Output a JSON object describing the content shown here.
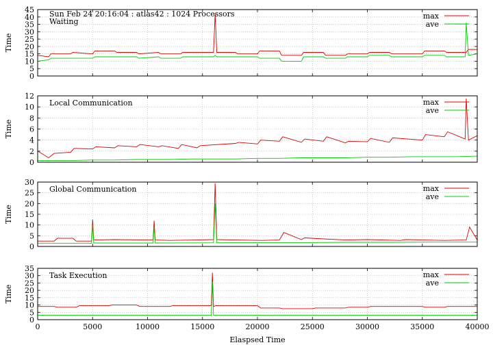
{
  "header": {
    "title": "Sun Feb 24 20:16:04 : atlas42 : 1024 Processors"
  },
  "chart_data": [
    {
      "type": "line",
      "annotation": "Waiting",
      "ylabel": "Time",
      "xlabel": "",
      "xlim": [
        0,
        40000
      ],
      "ylim": [
        0,
        45
      ],
      "yticks": [
        0,
        5,
        10,
        15,
        20,
        25,
        30,
        35,
        40,
        45
      ],
      "grid": true,
      "legend": "top-right",
      "series": [
        {
          "name": "max",
          "color": "#dd0000",
          "x": [
            0,
            1000,
            1200,
            3000,
            3200,
            5000,
            5200,
            7000,
            7200,
            9000,
            9200,
            11000,
            11200,
            13000,
            13200,
            16000,
            16150,
            16300,
            18000,
            18200,
            20000,
            20200,
            22000,
            22200,
            24000,
            24200,
            26000,
            26200,
            28000,
            28200,
            30000,
            30200,
            32000,
            32200,
            35000,
            35200,
            37000,
            37200,
            39000,
            39200,
            40000
          ],
          "y": [
            14,
            13,
            15,
            15,
            16,
            15,
            17,
            17,
            16,
            16,
            15,
            16,
            15,
            15,
            16,
            16,
            42,
            16,
            16,
            15,
            15,
            17,
            17,
            14,
            14,
            16,
            16,
            14,
            14,
            15,
            15,
            16,
            16,
            15,
            15,
            17,
            17,
            16,
            16,
            18,
            18
          ]
        },
        {
          "name": "ave",
          "color": "#00cc00",
          "x": [
            0,
            1000,
            1200,
            3000,
            3200,
            5000,
            5200,
            7000,
            7200,
            9000,
            9200,
            11000,
            11200,
            13000,
            13200,
            16000,
            16150,
            16300,
            18000,
            18200,
            20000,
            20200,
            22000,
            22200,
            24000,
            24200,
            26000,
            26200,
            28000,
            28200,
            30000,
            30200,
            32000,
            32200,
            35000,
            35200,
            37000,
            37200,
            38900,
            39000,
            39200,
            40000
          ],
          "y": [
            10,
            11,
            12,
            12,
            12,
            12,
            13,
            13,
            13,
            13,
            12,
            13,
            12,
            12,
            13,
            13,
            14,
            13,
            13,
            13,
            13,
            12,
            12,
            10,
            10,
            13,
            13,
            12,
            12,
            13,
            13,
            14,
            14,
            13,
            13,
            14,
            14,
            13,
            13,
            36,
            14,
            15
          ]
        }
      ]
    },
    {
      "type": "line",
      "annotation": "Local Communication",
      "ylabel": "Time",
      "xlabel": "",
      "xlim": [
        0,
        40000
      ],
      "ylim": [
        0,
        12
      ],
      "yticks": [
        0,
        2,
        4,
        6,
        8,
        10,
        12
      ],
      "grid": true,
      "legend": "top-right",
      "series": [
        {
          "name": "max",
          "color": "#dd0000",
          "x": [
            0,
            1000,
            1500,
            3000,
            3300,
            5000,
            5300,
            7000,
            7300,
            9000,
            9300,
            11000,
            11300,
            12800,
            13100,
            14500,
            14800,
            18000,
            18300,
            20000,
            20300,
            22000,
            22300,
            24000,
            24300,
            26000,
            26300,
            28000,
            28300,
            30000,
            30300,
            32000,
            32300,
            35000,
            35300,
            37000,
            37300,
            38900,
            39000,
            39200,
            40000
          ],
          "y": [
            2.0,
            0.8,
            1.6,
            1.8,
            2.5,
            2.4,
            2.8,
            2.6,
            3.0,
            2.8,
            3.2,
            2.8,
            3.0,
            2.5,
            3.2,
            2.6,
            3.0,
            3.4,
            3.6,
            3.3,
            4.0,
            3.8,
            4.6,
            3.6,
            4.2,
            3.8,
            4.6,
            3.5,
            3.8,
            3.7,
            4.3,
            3.6,
            4.4,
            4.0,
            5.0,
            4.6,
            5.5,
            4.2,
            11.5,
            4.0,
            4.8
          ]
        },
        {
          "name": "ave",
          "color": "#00cc00",
          "x": [
            0,
            3000,
            5000,
            7000,
            9000,
            12000,
            14000,
            16000,
            18000,
            20000,
            22000,
            24000,
            26000,
            28000,
            30000,
            32000,
            34000,
            36000,
            38000,
            40000
          ],
          "y": [
            0.3,
            0.3,
            0.4,
            0.4,
            0.5,
            0.5,
            0.6,
            0.6,
            0.6,
            0.7,
            0.7,
            0.8,
            0.8,
            0.8,
            0.9,
            0.9,
            1.0,
            1.0,
            1.0,
            1.1
          ]
        }
      ]
    },
    {
      "type": "line",
      "annotation": "Global Communication",
      "ylabel": "Time",
      "xlabel": "",
      "xlim": [
        0,
        40000
      ],
      "ylim": [
        0,
        30
      ],
      "yticks": [
        0,
        5,
        10,
        15,
        20,
        25,
        30
      ],
      "grid": true,
      "legend": "top-right",
      "series": [
        {
          "name": "max",
          "color": "#dd0000",
          "x": [
            0,
            1500,
            1800,
            3200,
            3500,
            4900,
            5000,
            5100,
            7000,
            9800,
            10500,
            10600,
            10700,
            12000,
            14500,
            16000,
            16150,
            16300,
            18000,
            20500,
            22000,
            22400,
            24000,
            24300,
            26000,
            28000,
            30000,
            33000,
            33500,
            35000,
            37000,
            39000,
            39300,
            40000
          ],
          "y": [
            2.5,
            2.5,
            3.8,
            3.8,
            2.5,
            2.5,
            12.5,
            3.0,
            3.2,
            3.0,
            3.0,
            12.0,
            3.0,
            2.8,
            3.0,
            3.2,
            29.5,
            3.2,
            3.0,
            2.8,
            3.0,
            6.5,
            3.2,
            4.0,
            3.5,
            3.0,
            3.2,
            2.8,
            3.2,
            3.0,
            2.8,
            3.0,
            9.0,
            3.0
          ]
        },
        {
          "name": "ave",
          "color": "#00cc00",
          "x": [
            0,
            4900,
            5000,
            5100,
            10500,
            10600,
            10700,
            16000,
            16150,
            16300,
            20000,
            22400,
            24000,
            28000,
            32000,
            36000,
            39300,
            40000
          ],
          "y": [
            1.5,
            1.5,
            10.0,
            1.6,
            1.6,
            9.0,
            1.6,
            1.7,
            20.0,
            1.7,
            1.8,
            1.8,
            1.8,
            1.9,
            1.9,
            2.0,
            2.0,
            2.0
          ]
        }
      ]
    },
    {
      "type": "line",
      "annotation": "Task Execution",
      "ylabel": "Time",
      "xlabel": "Elaspsed Time",
      "xlim": [
        0,
        40000
      ],
      "ylim": [
        0,
        35
      ],
      "yticks": [
        0,
        5,
        10,
        15,
        20,
        25,
        30,
        35
      ],
      "xticks": [
        0,
        5000,
        10000,
        15000,
        20000,
        25000,
        30000,
        35000,
        40000
      ],
      "grid": true,
      "legend": "top-right",
      "series": [
        {
          "name": "max",
          "color": "#dd0000",
          "x": [
            0,
            1500,
            1800,
            3500,
            3800,
            6500,
            6800,
            9000,
            9300,
            12000,
            12300,
            15800,
            15900,
            16000,
            16200,
            20000,
            20300,
            22000,
            22300,
            25000,
            25300,
            28000,
            28300,
            30000,
            30300,
            35000,
            35300,
            37000,
            37300,
            40000
          ],
          "y": [
            9.0,
            9.0,
            8.5,
            8.5,
            9.5,
            9.5,
            10.0,
            10.0,
            9.0,
            9.0,
            9.5,
            9.5,
            32.0,
            9.0,
            9.5,
            9.5,
            8.0,
            8.0,
            7.5,
            7.5,
            8.0,
            8.0,
            8.5,
            8.5,
            9.0,
            9.0,
            8.5,
            8.5,
            9.0,
            9.0
          ]
        },
        {
          "name": "ave",
          "color": "#00cc00",
          "x": [
            0,
            10000,
            15800,
            15900,
            16000,
            20000,
            30000,
            40000
          ],
          "y": [
            3.0,
            3.0,
            3.0,
            26.0,
            3.0,
            3.0,
            3.0,
            3.0
          ]
        }
      ]
    }
  ]
}
